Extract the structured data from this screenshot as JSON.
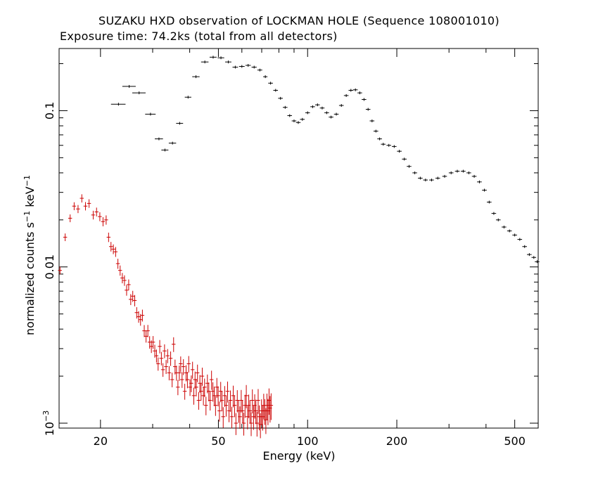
{
  "chart_data": {
    "type": "scatter",
    "title": "SUZAKU HXD observation of LOCKMAN HOLE (Sequence 108001010)",
    "subtitle": "Exposure time: 74.2ks (total from all detectors)",
    "xlabel": "Energy (keV)",
    "ylabel": {
      "prefix": "normalized counts s",
      "exp1": "−1",
      "mid": " keV",
      "exp2": "−1"
    },
    "xscale": "log",
    "yscale": "log",
    "xlim": [
      14.5,
      600
    ],
    "ylim": [
      0.00093,
      0.25
    ],
    "x_tick_labels": [
      {
        "value": 20,
        "label": "20"
      },
      {
        "value": 50,
        "label": "50"
      },
      {
        "value": 100,
        "label": "100"
      },
      {
        "value": 200,
        "label": "200"
      },
      {
        "value": 500,
        "label": "500"
      }
    ],
    "y_tick_labels": [
      {
        "value": 0.1,
        "label": "0.1",
        "exp": ""
      },
      {
        "value": 0.01,
        "label": "0.01",
        "exp": ""
      },
      {
        "value": 0.001,
        "label": "10",
        "exp": "−3"
      }
    ],
    "series": [
      {
        "color": "#000000",
        "x_err": [
          [
            23,
            1.3
          ],
          [
            25,
            1.3
          ],
          [
            27,
            1.4
          ],
          [
            29.5,
            1.2
          ],
          [
            31.5,
            1.0
          ],
          [
            33,
            0.9
          ],
          [
            35,
            1.0
          ],
          [
            37,
            1.0
          ],
          [
            39.5,
            1.0
          ],
          [
            42,
            1.2
          ],
          [
            45,
            1.3
          ],
          [
            48,
            1.3
          ],
          [
            51,
            1.3
          ],
          [
            54,
            1.3
          ],
          [
            57,
            1.2
          ],
          [
            60,
            1.3
          ],
          [
            63,
            1.3
          ],
          [
            66,
            1.3
          ],
          [
            69,
            1.3
          ],
          [
            72,
            1.2
          ]
        ],
        "points": [
          [
            23,
            0.11
          ],
          [
            25,
            0.143
          ],
          [
            27,
            0.13
          ],
          [
            29.5,
            0.095
          ],
          [
            31.5,
            0.066
          ],
          [
            33,
            0.056
          ],
          [
            35,
            0.062
          ],
          [
            37,
            0.083
          ],
          [
            39.5,
            0.122
          ],
          [
            42,
            0.165
          ],
          [
            45,
            0.205
          ],
          [
            48,
            0.22
          ],
          [
            51,
            0.218
          ],
          [
            54,
            0.205
          ],
          [
            57,
            0.19
          ],
          [
            60,
            0.192
          ],
          [
            63,
            0.195
          ],
          [
            66,
            0.19
          ],
          [
            69,
            0.182
          ],
          [
            72,
            0.165
          ],
          [
            75,
            0.15
          ],
          [
            78,
            0.135
          ],
          [
            81,
            0.12
          ],
          [
            84,
            0.105
          ],
          [
            87,
            0.093
          ],
          [
            90,
            0.086
          ],
          [
            93,
            0.084
          ],
          [
            96,
            0.088
          ],
          [
            100,
            0.097
          ],
          [
            104,
            0.106
          ],
          [
            108,
            0.109
          ],
          [
            112,
            0.104
          ],
          [
            116,
            0.097
          ],
          [
            120,
            0.091
          ],
          [
            125,
            0.095
          ],
          [
            130,
            0.108
          ],
          [
            135,
            0.125
          ],
          [
            140,
            0.135
          ],
          [
            145,
            0.136
          ],
          [
            150,
            0.13
          ],
          [
            155,
            0.118
          ],
          [
            160,
            0.102
          ],
          [
            165,
            0.086
          ],
          [
            170,
            0.074
          ],
          [
            175,
            0.066
          ],
          [
            180,
            0.061
          ],
          [
            188,
            0.06
          ],
          [
            196,
            0.059
          ],
          [
            204,
            0.055
          ],
          [
            212,
            0.049
          ],
          [
            220,
            0.044
          ],
          [
            230,
            0.04
          ],
          [
            240,
            0.037
          ],
          [
            250,
            0.036
          ],
          [
            262,
            0.036
          ],
          [
            275,
            0.037
          ],
          [
            290,
            0.038
          ],
          [
            305,
            0.04
          ],
          [
            320,
            0.041
          ],
          [
            335,
            0.041
          ],
          [
            350,
            0.04
          ],
          [
            365,
            0.038
          ],
          [
            380,
            0.035
          ],
          [
            395,
            0.031
          ],
          [
            410,
            0.026
          ],
          [
            425,
            0.022
          ],
          [
            440,
            0.02
          ],
          [
            460,
            0.018
          ],
          [
            480,
            0.017
          ],
          [
            500,
            0.016
          ],
          [
            520,
            0.015
          ],
          [
            540,
            0.0135
          ],
          [
            560,
            0.012
          ],
          [
            580,
            0.0115
          ],
          [
            595,
            0.0108
          ]
        ]
      },
      {
        "color": "#cc0000",
        "points": [
          [
            14.6,
            0.0095
          ],
          [
            15.2,
            0.0155
          ],
          [
            15.8,
            0.0205
          ],
          [
            16.3,
            0.0245
          ],
          [
            16.8,
            0.0235
          ],
          [
            17.3,
            0.0275
          ],
          [
            17.8,
            0.0245
          ],
          [
            18.3,
            0.0255
          ],
          [
            18.9,
            0.0215
          ],
          [
            19.4,
            0.0225
          ],
          [
            19.9,
            0.021
          ],
          [
            20.4,
            0.0195
          ],
          [
            20.9,
            0.02
          ],
          [
            21.3,
            0.0155
          ],
          [
            21.7,
            0.0135
          ],
          [
            22.1,
            0.013
          ],
          [
            22.5,
            0.0125
          ],
          [
            22.9,
            0.0105
          ],
          [
            23.3,
            0.0095
          ],
          [
            23.7,
            0.0085
          ],
          [
            24.1,
            0.0082
          ],
          [
            24.5,
            0.0071
          ],
          [
            24.9,
            0.0077
          ],
          [
            25.3,
            0.0062
          ],
          [
            25.7,
            0.0065
          ],
          [
            26.1,
            0.0061
          ],
          [
            26.5,
            0.0051
          ],
          [
            26.9,
            0.0048
          ],
          [
            27.3,
            0.0046
          ],
          [
            27.7,
            0.0049
          ],
          [
            28.1,
            0.0039
          ],
          [
            28.5,
            0.0036
          ],
          [
            28.9,
            0.0039
          ],
          [
            29.3,
            0.0033
          ],
          [
            29.7,
            0.0031
          ],
          [
            30.1,
            0.0033
          ],
          [
            30.5,
            0.0029
          ],
          [
            30.9,
            0.0027
          ],
          [
            31.3,
            0.0024
          ],
          [
            31.7,
            0.0031
          ],
          [
            32.1,
            0.0026
          ],
          [
            32.5,
            0.0022
          ],
          [
            32.9,
            0.0029
          ],
          [
            33.3,
            0.0023
          ],
          [
            33.7,
            0.0027
          ],
          [
            34.1,
            0.0021
          ],
          [
            34.5,
            0.0026
          ],
          [
            34.9,
            0.0019
          ],
          [
            35.3,
            0.0032
          ],
          [
            35.7,
            0.0023
          ],
          [
            36.1,
            0.0021
          ],
          [
            36.5,
            0.0017
          ],
          [
            36.9,
            0.0021
          ],
          [
            37.3,
            0.0024
          ],
          [
            37.7,
            0.0019
          ],
          [
            38.1,
            0.0023
          ],
          [
            38.5,
            0.0016
          ],
          [
            38.9,
            0.0021
          ],
          [
            39.3,
            0.0019
          ],
          [
            39.7,
            0.0024
          ],
          [
            40.1,
            0.0017
          ],
          [
            40.5,
            0.0018
          ],
          [
            40.9,
            0.0022
          ],
          [
            41.3,
            0.0015
          ],
          [
            41.7,
            0.0019
          ],
          [
            42.1,
            0.0017
          ],
          [
            42.5,
            0.0021
          ],
          [
            42.9,
            0.0014
          ],
          [
            43.3,
            0.0018
          ],
          [
            43.7,
            0.0016
          ],
          [
            44.1,
            0.002
          ],
          [
            44.5,
            0.0015
          ],
          [
            44.9,
            0.0017
          ],
          [
            45.4,
            0.0013
          ],
          [
            45.9,
            0.0018
          ],
          [
            46.4,
            0.0016
          ],
          [
            46.9,
            0.0014
          ],
          [
            47.4,
            0.0019
          ],
          [
            47.9,
            0.0016
          ],
          [
            48.4,
            0.0015
          ],
          [
            48.9,
            0.0013
          ],
          [
            49.4,
            0.0017
          ],
          [
            49.9,
            0.0015
          ],
          [
            50.4,
            0.0012
          ],
          [
            50.9,
            0.0016
          ],
          [
            51.4,
            0.0014
          ],
          [
            51.9,
            0.0011
          ],
          [
            52.5,
            0.0015
          ],
          [
            53.1,
            0.0013
          ],
          [
            53.7,
            0.0016
          ],
          [
            54.3,
            0.0012
          ],
          [
            54.9,
            0.0014
          ],
          [
            55.5,
            0.0011
          ],
          [
            56.1,
            0.0015
          ],
          [
            56.7,
            0.0013
          ],
          [
            57.3,
            0.001
          ],
          [
            57.9,
            0.0014
          ],
          [
            58.5,
            0.0012
          ],
          [
            59.1,
            0.0011
          ],
          [
            59.7,
            0.0014
          ],
          [
            60.3,
            0.0012
          ],
          [
            60.9,
            0.001
          ],
          [
            61.5,
            0.0013
          ],
          [
            62.1,
            0.0015
          ],
          [
            62.7,
            0.0011
          ],
          [
            63.3,
            0.0013
          ],
          [
            63.9,
            0.0012
          ],
          [
            64.5,
            0.001
          ],
          [
            65.1,
            0.0014
          ],
          [
            65.7,
            0.0011
          ],
          [
            66.3,
            0.0013
          ],
          [
            66.9,
            0.0012
          ],
          [
            67.5,
            0.001
          ],
          [
            68.1,
            0.0014
          ],
          [
            68.7,
            0.0011
          ],
          [
            69.3,
            0.00098
          ],
          [
            69.9,
            0.0012
          ],
          [
            70.5,
            0.0011
          ],
          [
            71.1,
            0.0013
          ],
          [
            71.7,
            0.0012
          ],
          [
            72.3,
            0.00105
          ],
          [
            72.9,
            0.0013
          ],
          [
            73.5,
            0.0012
          ],
          [
            74.1,
            0.0014
          ],
          [
            74.7,
            0.00125
          ],
          [
            75.3,
            0.0013
          ]
        ]
      }
    ]
  }
}
